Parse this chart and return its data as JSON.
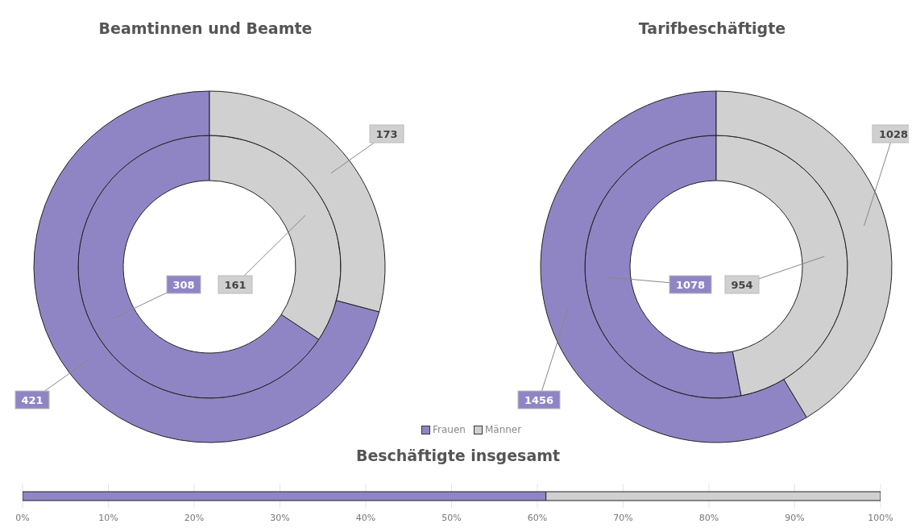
{
  "chart_data": [
    {
      "type": "donut",
      "title": "Beamtinnen und Beamte",
      "categories": [
        "Frauen",
        "Männer"
      ],
      "colors": [
        "#9085c4",
        "#d0d0d0"
      ],
      "data_labels": true,
      "legend": "bottom right",
      "series": [
        {
          "values": [
            308,
            161
          ]
        },
        {
          "values": [
            421,
            173
          ]
        }
      ]
    },
    {
      "type": "donut",
      "title": "Tarifbeschäftigte",
      "categories": [
        null,
        null
      ],
      "colors": [
        "#9085c4",
        "#d0d0d0"
      ],
      "data_labels": true,
      "series": [
        {
          "values": [
            1078,
            954
          ]
        },
        {
          "values": [
            1456,
            1028
          ]
        }
      ]
    },
    {
      "type": "bar",
      "title": "Beschäftigte insgesamt",
      "orientation": "horizontal",
      "stacked": true,
      "categories": [
        null
      ],
      "grid": "x",
      "xlim": [
        0,
        100
      ],
      "xticks": [
        {
          "value": 0,
          "label": "0%"
        },
        {
          "value": 10,
          "label": "10%"
        },
        {
          "value": 20,
          "label": "20%"
        },
        {
          "value": 30,
          "label": "30%"
        },
        {
          "value": 40,
          "label": "40%"
        },
        {
          "value": 50,
          "label": "50%"
        },
        {
          "value": 60,
          "label": "60%"
        },
        {
          "value": 70,
          "label": "70%"
        },
        {
          "value": 80,
          "label": "80%"
        },
        {
          "value": 90,
          "label": "90%"
        },
        {
          "value": 100,
          "label": "100%"
        }
      ],
      "series": [
        {
          "color": "#9085c4",
          "values": [
            61
          ]
        },
        {
          "color": "#d0d0d0",
          "values": [
            39
          ]
        }
      ]
    }
  ]
}
